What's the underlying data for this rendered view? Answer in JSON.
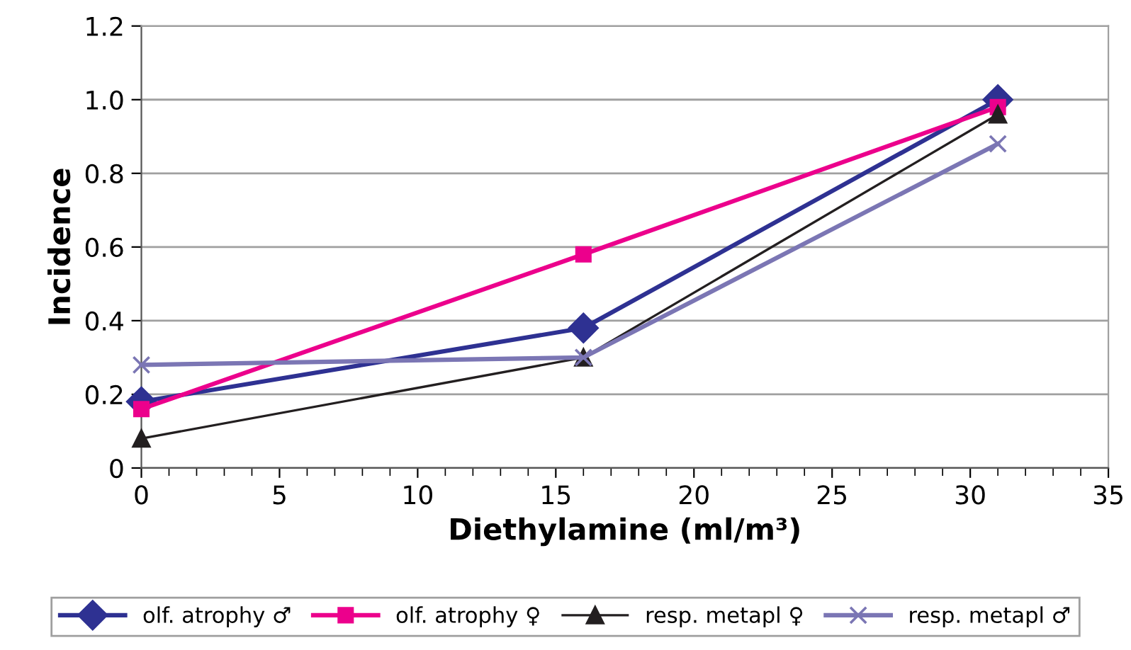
{
  "chart_data": {
    "type": "line",
    "xlabel": "Diethylamine (ml/m³)",
    "ylabel": "Incidence",
    "x": [
      0,
      16,
      31
    ],
    "series": [
      {
        "name": "olf. atrophy ♂",
        "color": "#2e3192",
        "marker": "diamond",
        "values": [
          0.18,
          0.38,
          1.0
        ]
      },
      {
        "name": "olf. atrophy ♀",
        "color": "#ec008c",
        "marker": "square",
        "values": [
          0.16,
          0.58,
          0.98
        ]
      },
      {
        "name": "resp. metapl ♀",
        "color": "#231f20",
        "marker": "triangle",
        "values": [
          0.08,
          0.3,
          0.96
        ]
      },
      {
        "name": "resp. metapl ♂",
        "color": "#7b76b4",
        "marker": "cross",
        "values": [
          0.28,
          0.3,
          0.88
        ]
      }
    ],
    "xlim": [
      0,
      35
    ],
    "xticks": [
      0,
      5,
      10,
      15,
      20,
      25,
      30,
      35
    ],
    "ylim": [
      0,
      1.2
    ],
    "yticks": [
      0,
      {
        "value": 0.2,
        "label": "0.2"
      },
      {
        "value": 0.4,
        "label": "0.4"
      },
      {
        "value": 0.6,
        "label": "0.6"
      },
      {
        "value": 0.8,
        "label": "0.8"
      },
      {
        "value": 1.0,
        "label": "1.0"
      },
      {
        "value": 1.2,
        "label": "1.2"
      }
    ],
    "grid": "y",
    "legend": "bottom",
    "line_style": "solid"
  }
}
